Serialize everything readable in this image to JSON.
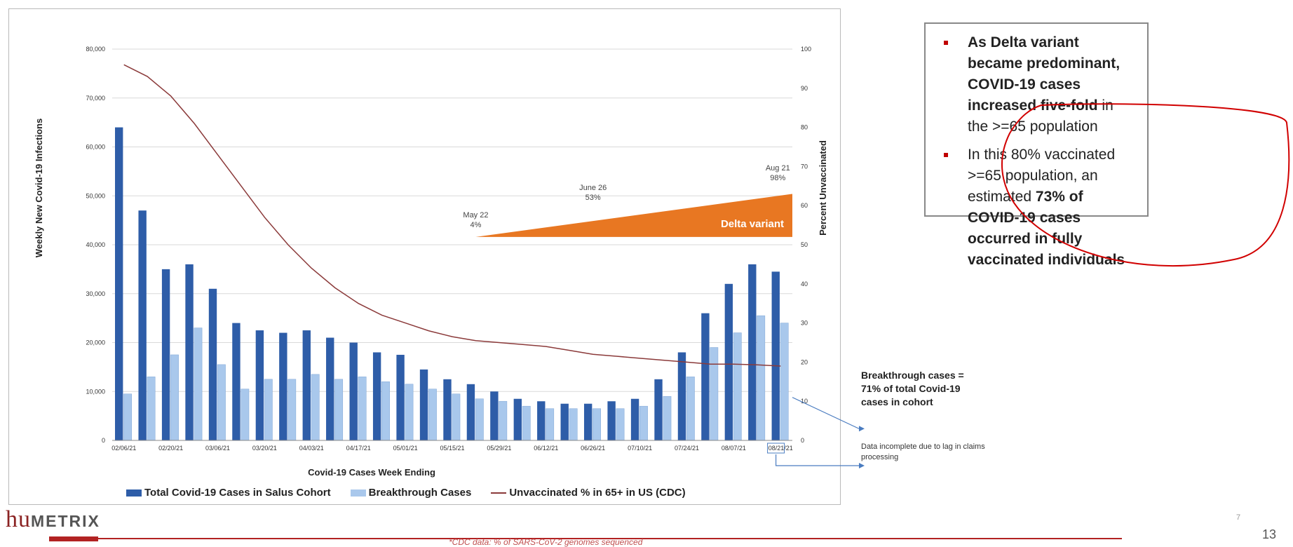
{
  "chart_data": {
    "type": "bar",
    "xlabel": "Covid-19 Cases Week Ending",
    "ylabel": "Weekly New Covid-19 Infections",
    "y2label": "Percent Unvaccinated",
    "ylim": [
      0,
      80000
    ],
    "y2lim": [
      0,
      100
    ],
    "y_ticks": [
      "0",
      "10,000",
      "20,000",
      "30,000",
      "40,000",
      "50,000",
      "60,000",
      "70,000",
      "80,000"
    ],
    "y2_ticks": [
      "0",
      "10",
      "20",
      "30",
      "40",
      "50",
      "60",
      "70",
      "80",
      "90",
      "100"
    ],
    "x_tick_labels": [
      "02/06/21",
      "02/20/21",
      "03/06/21",
      "03/20/21",
      "04/03/21",
      "04/17/21",
      "05/01/21",
      "05/15/21",
      "05/29/21",
      "06/12/21",
      "06/26/21",
      "07/10/21",
      "07/24/21",
      "08/07/21",
      "08/21/21"
    ],
    "categories": [
      "02/06/21",
      "02/13/21",
      "02/20/21",
      "02/27/21",
      "03/06/21",
      "03/13/21",
      "03/20/21",
      "03/27/21",
      "04/03/21",
      "04/10/21",
      "04/17/21",
      "04/24/21",
      "05/01/21",
      "05/08/21",
      "05/15/21",
      "05/22/21",
      "05/29/21",
      "06/05/21",
      "06/12/21",
      "06/19/21",
      "06/26/21",
      "07/03/21",
      "07/10/21",
      "07/17/21",
      "07/24/21",
      "07/31/21",
      "08/07/21",
      "08/14/21",
      "08/21/21"
    ],
    "series": [
      {
        "name": "Total Covid-19 Cases in Salus Cohort",
        "kind": "bar",
        "color": "#2E5DA8",
        "values": [
          64000,
          47000,
          35000,
          36000,
          31000,
          24000,
          22500,
          22000,
          22500,
          21000,
          20000,
          18000,
          17500,
          14500,
          12500,
          11500,
          10000,
          8500,
          8000,
          7500,
          7500,
          8000,
          8500,
          12500,
          18000,
          26000,
          32000,
          36000,
          34500
        ]
      },
      {
        "name": "Breakthrough Cases",
        "kind": "bar",
        "color": "#A9C8EC",
        "values": [
          9500,
          13000,
          17500,
          23000,
          15500,
          10500,
          12500,
          12500,
          13500,
          12500,
          13000,
          12000,
          11500,
          10500,
          9500,
          8500,
          8000,
          7000,
          6500,
          6500,
          6500,
          6500,
          7000,
          9000,
          13000,
          19000,
          22000,
          25500,
          24000
        ]
      },
      {
        "name": "Unvaccinated % in 65+ in US (CDC)",
        "kind": "line",
        "axis": "right",
        "color": "#8B3A3A",
        "values": [
          96,
          93,
          88,
          81,
          73,
          65,
          57,
          50,
          44,
          39,
          35,
          32,
          30,
          28,
          26.5,
          25.5,
          25,
          24.5,
          24,
          23,
          22,
          21.5,
          21,
          20.5,
          20,
          19.5,
          19.5,
          19.3,
          19
        ]
      }
    ],
    "annotations": {
      "delta_label": "Delta variant",
      "points": [
        {
          "date": "May 22",
          "pct": "4%"
        },
        {
          "date": "June 26",
          "pct": "53%"
        },
        {
          "date": "Aug 21",
          "pct": "98%"
        }
      ],
      "delta_color": "#E87722"
    },
    "grid": true,
    "legend_position": "bottom"
  },
  "notes": {
    "bullet1_pre": "As Delta variant became predominant, COVID-19 cases ",
    "bullet1_bold": "increased five-fold",
    "bullet1_post": " in the >=65 population",
    "bullet2_pre": "In this 80% vaccinated >=65 population, an estimated ",
    "bullet2_bold": "73% of COVID-19 cases occurred in fully vaccinated individuals"
  },
  "callouts": {
    "breakthrough": "Breakthrough cases = 71% of total Covid-19 cases in cohort",
    "data_incomplete": "Data incomplete due to lag in claims processing"
  },
  "logo": {
    "hu": "hu",
    "rest": "METRIX"
  },
  "footnote": "*CDC data: % of SARS-CoV-2 genomes sequenced",
  "slide_number": "13",
  "small_number": "7"
}
